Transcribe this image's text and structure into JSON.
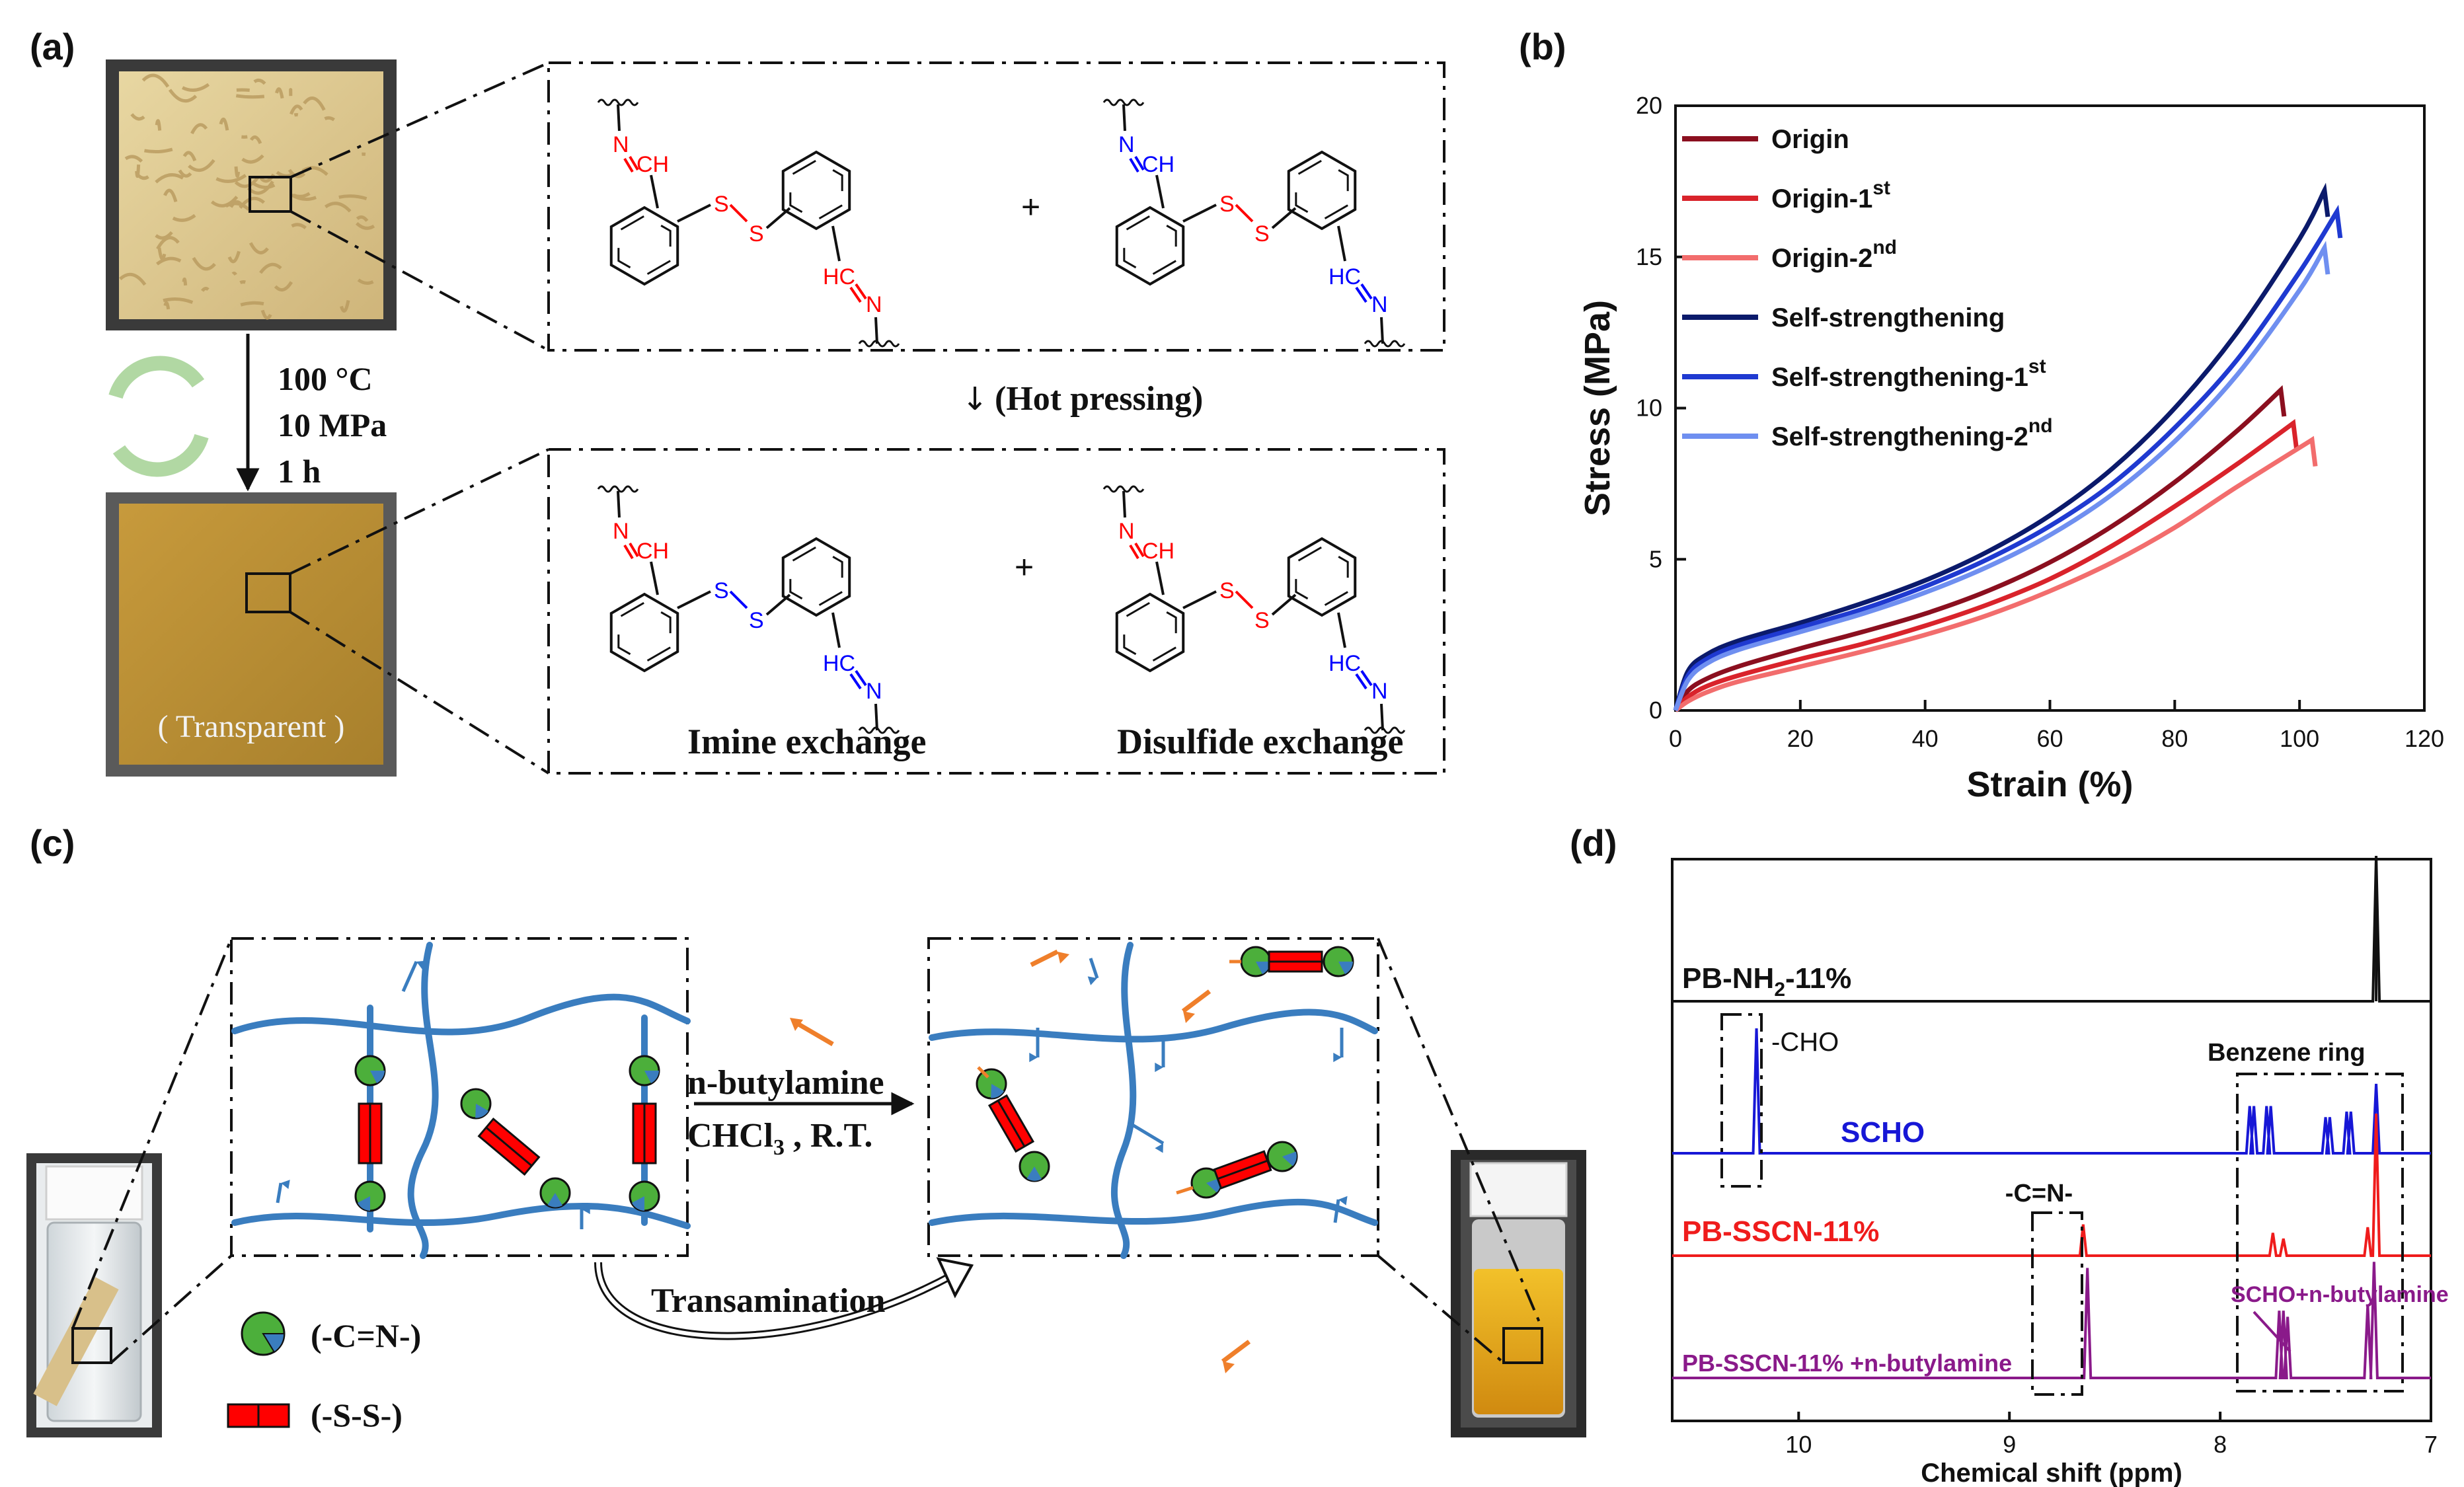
{
  "panels": {
    "a": "(a)",
    "b": "(b)",
    "c": "(c)",
    "d": "(d)"
  },
  "panel_a": {
    "conditions": [
      "100 °C",
      "10 MPa",
      "1 h"
    ],
    "process_label": "(Hot pressing)",
    "transparent_label": "( Transparent )",
    "imine_label": "Imine exchange",
    "disulfide_label": "Disulfide exchange",
    "plus": "+",
    "atoms": {
      "N": "N",
      "CH": "CH",
      "HC": "HC",
      "S": "S"
    },
    "colors": {
      "red": "#ff0000",
      "blue": "#0000ff",
      "ink": "#111111"
    }
  },
  "panel_c": {
    "reagent_line1": "n-butylamine",
    "reagent_line2": "CHCl",
    "reagent_sub": "3",
    "reagent_tail": " , R.T.",
    "transamination": "Transamination",
    "legend_imine": "(-C=N-)",
    "legend_disulfide": "(-S-S-)",
    "colors": {
      "chain": "#3a7dbf",
      "node_green": "#4caf3b",
      "node_blue": "#3a7dbf",
      "ss_red": "#ff0000",
      "free_amine": "#ef7f2b"
    }
  },
  "chart_data": [
    {
      "type": "line",
      "panel": "(b)",
      "xlabel": "Strain (%)",
      "ylabel": "Stress (MPa)",
      "xlim": [
        0,
        120
      ],
      "ylim": [
        0,
        20
      ],
      "xticks": [
        0,
        20,
        40,
        60,
        80,
        100,
        120
      ],
      "yticks": [
        0,
        5,
        10,
        15,
        20
      ],
      "legend_position": "top-left",
      "series": [
        {
          "name": "Origin",
          "sup": "",
          "color": "#8b0f1f",
          "x": [
            0,
            2,
            5,
            10,
            20,
            30,
            40,
            50,
            60,
            70,
            80,
            90,
            97
          ],
          "y": [
            0,
            0.65,
            1.05,
            1.45,
            2.05,
            2.6,
            3.2,
            3.95,
            4.9,
            6.1,
            7.55,
            9.25,
            10.6
          ]
        },
        {
          "name": "Origin-1",
          "sup": "st",
          "color": "#d9232b",
          "x": [
            0,
            2,
            5,
            10,
            20,
            30,
            40,
            50,
            60,
            70,
            80,
            90,
            99
          ],
          "y": [
            0,
            0.45,
            0.8,
            1.15,
            1.7,
            2.2,
            2.8,
            3.5,
            4.35,
            5.45,
            6.75,
            8.15,
            9.5
          ]
        },
        {
          "name": "Origin-2",
          "sup": "nd",
          "color": "#f26d6d",
          "x": [
            0,
            2,
            5,
            10,
            20,
            30,
            40,
            50,
            60,
            70,
            80,
            90,
            102
          ],
          "y": [
            0,
            0.3,
            0.6,
            0.95,
            1.45,
            1.95,
            2.5,
            3.15,
            3.95,
            4.9,
            6.05,
            7.4,
            8.95
          ]
        },
        {
          "name": "Self-strengthening",
          "sup": "",
          "color": "#0b1a6b",
          "x": [
            0,
            2,
            5,
            10,
            20,
            30,
            40,
            50,
            60,
            70,
            80,
            90,
            100,
            104
          ],
          "y": [
            0,
            1.3,
            1.85,
            2.3,
            2.9,
            3.55,
            4.3,
            5.25,
            6.45,
            8.0,
            10.0,
            12.5,
            15.6,
            17.2
          ]
        },
        {
          "name": "Self-strengthening-1",
          "sup": "st",
          "color": "#1f3ad1",
          "x": [
            0,
            2,
            5,
            10,
            20,
            30,
            40,
            50,
            60,
            70,
            80,
            90,
            100,
            106
          ],
          "y": [
            0,
            1.15,
            1.7,
            2.15,
            2.75,
            3.35,
            4.1,
            5.0,
            6.1,
            7.5,
            9.35,
            11.6,
            14.5,
            16.5
          ]
        },
        {
          "name": "Self-strengthening-2",
          "sup": "nd",
          "color": "#6f8ff0",
          "x": [
            0,
            2,
            5,
            10,
            20,
            30,
            40,
            50,
            60,
            70,
            80,
            90,
            100,
            104
          ],
          "y": [
            0,
            1.0,
            1.55,
            2.0,
            2.6,
            3.2,
            3.9,
            4.75,
            5.8,
            7.15,
            8.9,
            11.1,
            13.9,
            15.3
          ]
        }
      ]
    },
    {
      "type": "line",
      "panel": "(d)",
      "xlabel": "Chemical shift (ppm)",
      "xlim": [
        10.6,
        7.0
      ],
      "xticks": [
        10,
        9,
        8,
        7
      ],
      "traces": [
        {
          "name": "PB-NH",
          "sub": "2",
          "tail": "-11%",
          "color": "#111111",
          "peaks": [
            {
              "ppm": 7.26,
              "h": 1.0
            }
          ]
        },
        {
          "name": "SCHO",
          "sub": "",
          "tail": "",
          "color": "#1717d6",
          "peaks": [
            {
              "ppm": 10.2,
              "h": 0.9
            },
            {
              "ppm": 7.86,
              "h": 0.34
            },
            {
              "ppm": 7.84,
              "h": 0.34
            },
            {
              "ppm": 7.78,
              "h": 0.34
            },
            {
              "ppm": 7.76,
              "h": 0.34
            },
            {
              "ppm": 7.5,
              "h": 0.26
            },
            {
              "ppm": 7.48,
              "h": 0.26
            },
            {
              "ppm": 7.4,
              "h": 0.3
            },
            {
              "ppm": 7.38,
              "h": 0.3
            },
            {
              "ppm": 7.26,
              "h": 0.5
            }
          ]
        },
        {
          "name": "PB-SSCN-11%",
          "sub": "",
          "tail": "",
          "color": "#ef1c1c",
          "peaks": [
            {
              "ppm": 8.65,
              "h": 0.22
            },
            {
              "ppm": 7.75,
              "h": 0.16
            },
            {
              "ppm": 7.7,
              "h": 0.12
            },
            {
              "ppm": 7.3,
              "h": 0.2
            },
            {
              "ppm": 7.26,
              "h": 1.0
            }
          ]
        },
        {
          "name": "PB-SSCN-11% +n-butylamine",
          "sub": "",
          "tail": "",
          "color": "#8a1a8a",
          "peaks": [
            {
              "ppm": 8.63,
              "h": 0.9
            },
            {
              "ppm": 7.72,
              "h": 0.55
            },
            {
              "ppm": 7.7,
              "h": 0.55
            },
            {
              "ppm": 7.68,
              "h": 0.5
            },
            {
              "ppm": 7.3,
              "h": 0.6
            },
            {
              "ppm": 7.27,
              "h": 0.95
            }
          ]
        }
      ],
      "annotations": {
        "cho": "-CHO",
        "benzene": "Benzene ring",
        "cn": "-C=N-",
        "scho_amine": "SCHO+n-butylamine"
      }
    }
  ]
}
